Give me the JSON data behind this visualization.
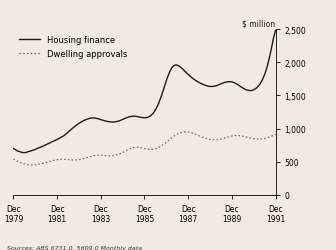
{
  "ylabel": "$ million",
  "source_text": "Sources: ABS 6731.0, 5609.0 Monthly data",
  "ylim": [
    0,
    2500
  ],
  "yticks": [
    0,
    500,
    1000,
    1500,
    2000,
    2500
  ],
  "legend_items": [
    "Housing finance",
    "Dwelling approvals"
  ],
  "housing_finance": [
    700,
    680,
    660,
    650,
    640,
    635,
    640,
    650,
    660,
    670,
    680,
    695,
    710,
    720,
    735,
    750,
    765,
    780,
    795,
    810,
    825,
    840,
    858,
    875,
    895,
    920,
    950,
    978,
    1005,
    1030,
    1055,
    1078,
    1098,
    1115,
    1130,
    1142,
    1152,
    1158,
    1160,
    1155,
    1148,
    1138,
    1128,
    1118,
    1110,
    1104,
    1100,
    1098,
    1100,
    1106,
    1115,
    1128,
    1142,
    1156,
    1168,
    1178,
    1184,
    1186,
    1184,
    1178,
    1170,
    1165,
    1162,
    1165,
    1175,
    1195,
    1225,
    1270,
    1330,
    1405,
    1492,
    1588,
    1688,
    1782,
    1862,
    1920,
    1952,
    1960,
    1950,
    1928,
    1900,
    1868,
    1836,
    1806,
    1778,
    1753,
    1730,
    1710,
    1692,
    1676,
    1662,
    1650,
    1640,
    1635,
    1634,
    1638,
    1646,
    1658,
    1672,
    1685,
    1696,
    1704,
    1708,
    1706,
    1698,
    1684,
    1665,
    1644,
    1622,
    1602,
    1586,
    1576,
    1572,
    1576,
    1590,
    1612,
    1645,
    1690,
    1750,
    1828,
    1928,
    2055,
    2200,
    2360,
    2480
  ],
  "dwelling_approvals": [
    540,
    520,
    505,
    490,
    478,
    468,
    460,
    455,
    452,
    451,
    452,
    455,
    460,
    466,
    474,
    483,
    492,
    502,
    511,
    519,
    526,
    531,
    534,
    535,
    534,
    532,
    530,
    528,
    526,
    525,
    526,
    530,
    536,
    544,
    553,
    563,
    573,
    582,
    590,
    595,
    598,
    598,
    596,
    593,
    590,
    588,
    588,
    590,
    595,
    603,
    614,
    628,
    644,
    661,
    677,
    692,
    704,
    713,
    717,
    717,
    713,
    706,
    698,
    691,
    686,
    684,
    686,
    692,
    703,
    718,
    737,
    759,
    783,
    809,
    836,
    862,
    886,
    907,
    924,
    937,
    945,
    949,
    948,
    944,
    936,
    926,
    914,
    901,
    888,
    875,
    863,
    852,
    843,
    836,
    831,
    829,
    830,
    833,
    839,
    847,
    857,
    867,
    876,
    884,
    890,
    893,
    894,
    892,
    888,
    882,
    874,
    866,
    858,
    851,
    845,
    841,
    840,
    841,
    845,
    852,
    861,
    872,
    884,
    897,
    910
  ],
  "line_color_hf": "#1a1a1a",
  "line_color_da": "#666666",
  "background_color": "#f0ebe0",
  "figsize": [
    3.36,
    2.51
  ],
  "dpi": 100
}
